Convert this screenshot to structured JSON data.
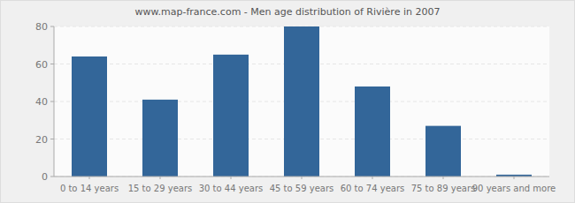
{
  "chart_data": {
    "type": "bar",
    "title": "www.map-france.com - Men age distribution of Rivière in 2007",
    "categories": [
      "0 to 14 years",
      "15 to 29 years",
      "30 to 44 years",
      "45 to 59 years",
      "60 to 74 years",
      "75 to 89 years",
      "90 years and more"
    ],
    "values": [
      64,
      41,
      65,
      80,
      48,
      27,
      1
    ],
    "color": "#336699",
    "ylim": [
      0,
      80
    ],
    "yticks": [
      0,
      20,
      40,
      60,
      80
    ],
    "grid": true
  }
}
